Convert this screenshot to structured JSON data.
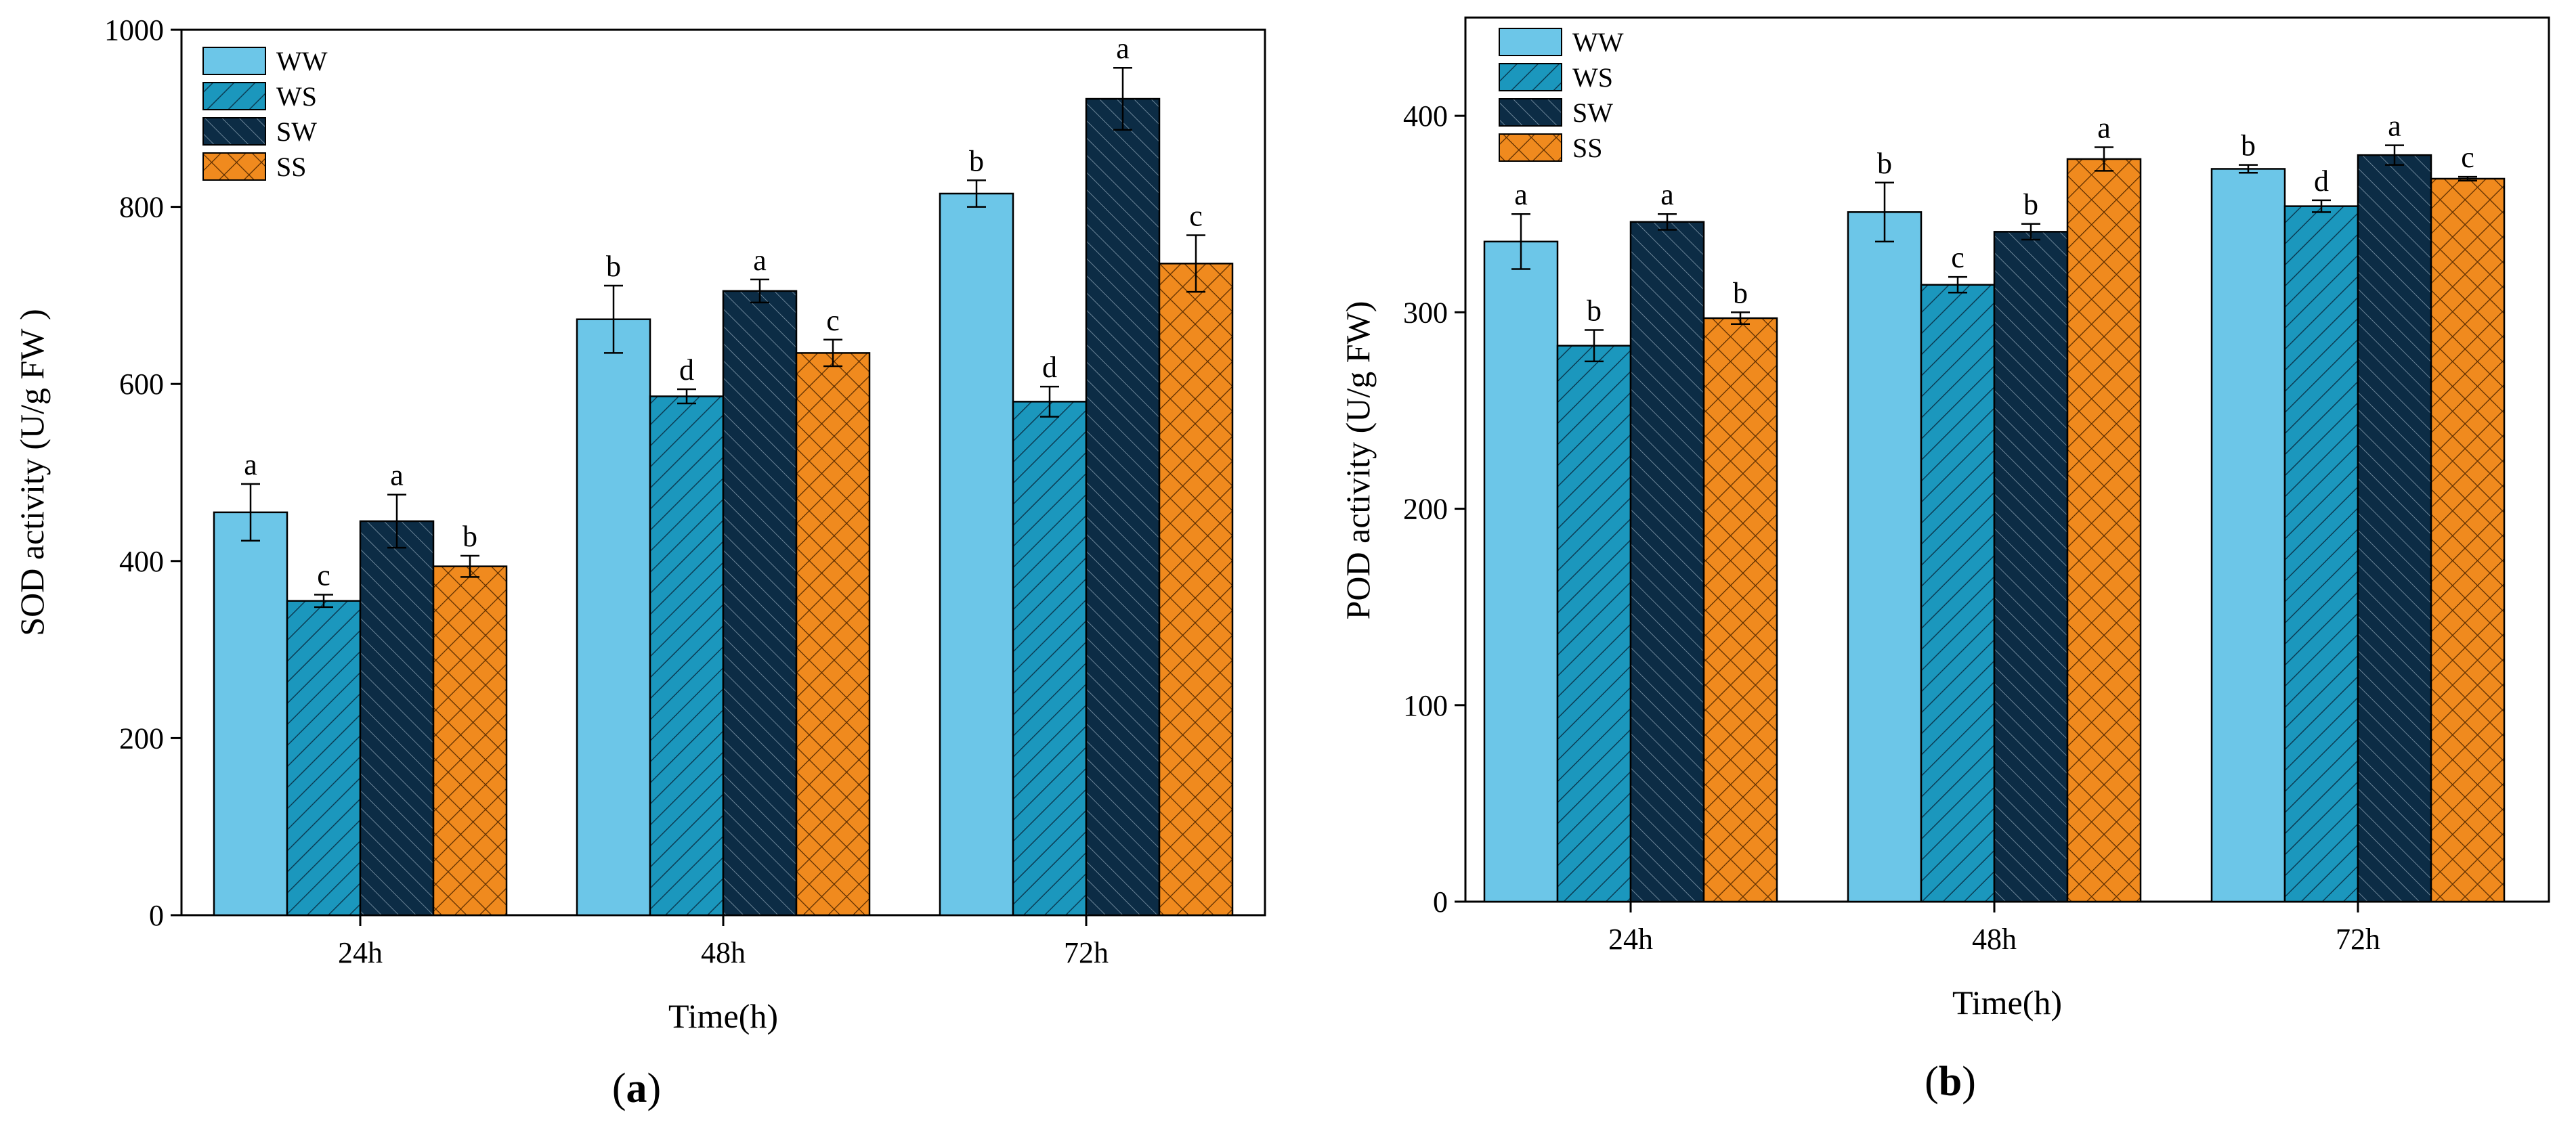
{
  "colors": {
    "WW": "#6cc6e8",
    "WS": "#1b97bd",
    "SW": "#0c2c45",
    "SS": "#f08a1e",
    "axis": "#000000"
  },
  "chart_data": [
    {
      "panel": "a",
      "type": "bar",
      "title": "",
      "xlabel": "Time(h)",
      "ylabel": "SOD activity (U/g FW )",
      "ylim": [
        0,
        1000
      ],
      "yticks": [
        0,
        200,
        400,
        600,
        800,
        1000
      ],
      "categories": [
        "24h",
        "48h",
        "72h"
      ],
      "legend": {
        "entries": [
          "WW",
          "WS",
          "SW",
          "SS"
        ],
        "placement": "top-left"
      },
      "series": [
        {
          "name": "WW",
          "pattern": "solid",
          "values": [
            455,
            673,
            815
          ],
          "errors": [
            32,
            38,
            15
          ],
          "letters": [
            "a",
            "b",
            "b"
          ]
        },
        {
          "name": "WS",
          "pattern": "hatch",
          "values": [
            355,
            586,
            580
          ],
          "errors": [
            7,
            8,
            17
          ],
          "letters": [
            "c",
            "d",
            "d"
          ]
        },
        {
          "name": "SW",
          "pattern": "hatch-fine",
          "values": [
            445,
            705,
            922
          ],
          "errors": [
            30,
            13,
            35
          ],
          "letters": [
            "a",
            "a",
            "a"
          ]
        },
        {
          "name": "SS",
          "pattern": "cross",
          "values": [
            394,
            635,
            736
          ],
          "errors": [
            12,
            15,
            32
          ],
          "letters": [
            "b",
            "c",
            "c"
          ]
        }
      ]
    },
    {
      "panel": "b",
      "type": "bar",
      "title": "",
      "xlabel": "Time(h)",
      "ylabel": "POD activity (U/g FW)",
      "ylim": [
        0,
        450
      ],
      "yticks": [
        0,
        100,
        200,
        300,
        400
      ],
      "categories": [
        "24h",
        "48h",
        "72h"
      ],
      "legend": {
        "entries": [
          "WW",
          "WS",
          "SW",
          "SS"
        ],
        "placement": "top-left"
      },
      "series": [
        {
          "name": "WW",
          "pattern": "solid",
          "values": [
            336,
            351,
            373
          ],
          "errors": [
            14,
            15,
            2
          ],
          "letters": [
            "a",
            "b",
            "b"
          ]
        },
        {
          "name": "WS",
          "pattern": "hatch",
          "values": [
            283,
            314,
            354
          ],
          "errors": [
            8,
            4,
            3
          ],
          "letters": [
            "b",
            "c",
            "d"
          ]
        },
        {
          "name": "SW",
          "pattern": "hatch-fine",
          "values": [
            346,
            341,
            380
          ],
          "errors": [
            4,
            4,
            5
          ],
          "letters": [
            "a",
            "b",
            "a"
          ]
        },
        {
          "name": "SS",
          "pattern": "cross",
          "values": [
            297,
            378,
            368
          ],
          "errors": [
            3,
            6,
            1
          ],
          "letters": [
            "b",
            "a",
            "c"
          ]
        }
      ]
    }
  ],
  "panel_labels": {
    "a": {
      "open": "(",
      "letter": "a",
      "close": ")"
    },
    "b": {
      "open": "(",
      "letter": "b",
      "close": ")"
    }
  }
}
